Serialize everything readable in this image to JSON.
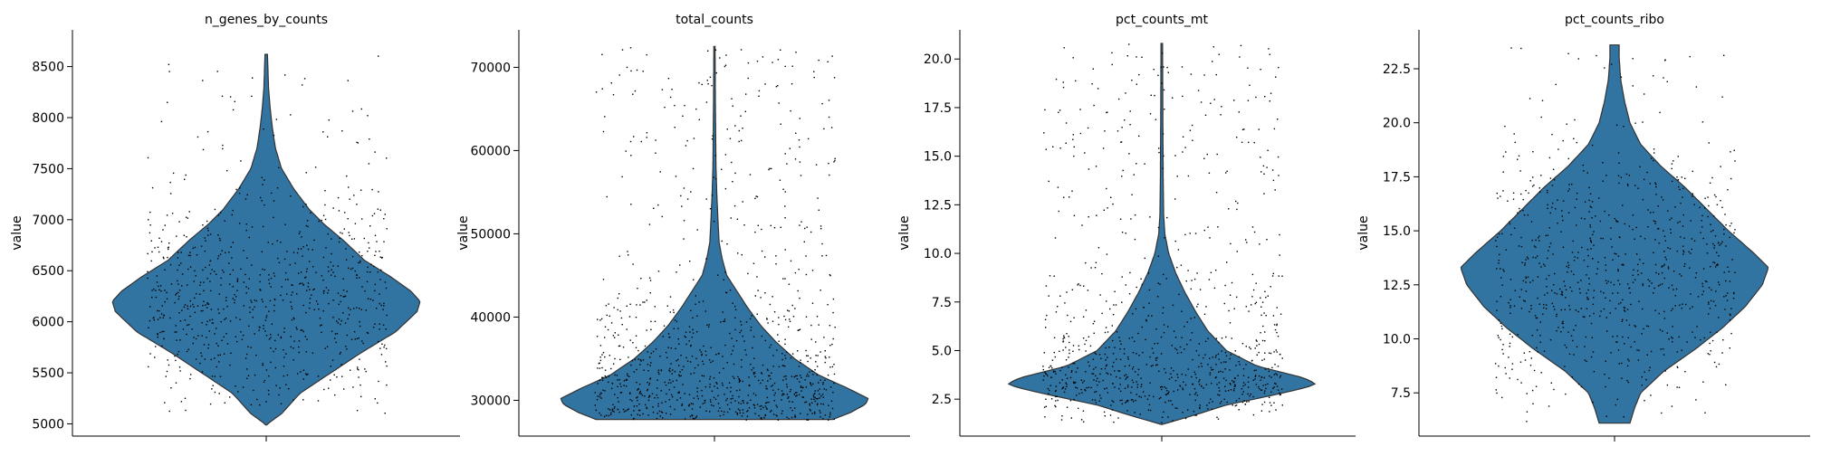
{
  "chart_data": [
    {
      "type": "violin",
      "title": "n_genes_by_counts",
      "ylabel": "value",
      "xlabel": "",
      "ylim": [
        4880,
        8860
      ],
      "yticks": [
        5000,
        5500,
        6000,
        6500,
        7000,
        7500,
        8000,
        8500
      ],
      "ytick_labels": [
        "5000",
        "5500",
        "6000",
        "6500",
        "7000",
        "7500",
        "8000",
        "8500"
      ],
      "data_range": [
        4990,
        8620
      ],
      "profile": [
        [
          4990,
          0.0
        ],
        [
          5100,
          0.1
        ],
        [
          5300,
          0.22
        ],
        [
          5500,
          0.42
        ],
        [
          5700,
          0.62
        ],
        [
          5900,
          0.84
        ],
        [
          6100,
          0.98
        ],
        [
          6200,
          1.0
        ],
        [
          6300,
          0.94
        ],
        [
          6450,
          0.8
        ],
        [
          6600,
          0.64
        ],
        [
          6800,
          0.5
        ],
        [
          6950,
          0.38
        ],
        [
          7100,
          0.28
        ],
        [
          7300,
          0.18
        ],
        [
          7500,
          0.1
        ],
        [
          7700,
          0.06
        ],
        [
          7900,
          0.04
        ],
        [
          8100,
          0.025
        ],
        [
          8300,
          0.015
        ],
        [
          8620,
          0.008
        ]
      ],
      "points": 800,
      "color": "#3274a1"
    },
    {
      "type": "violin",
      "title": "total_counts",
      "ylabel": "value",
      "xlabel": "",
      "ylim": [
        25700,
        74500
      ],
      "yticks": [
        30000,
        40000,
        50000,
        60000,
        70000
      ],
      "ytick_labels": [
        "30000",
        "40000",
        "50000",
        "60000",
        "70000"
      ],
      "data_range": [
        27700,
        72500
      ],
      "profile": [
        [
          27700,
          0.77
        ],
        [
          28500,
          0.88
        ],
        [
          29500,
          0.98
        ],
        [
          30200,
          1.0
        ],
        [
          31500,
          0.86
        ],
        [
          33000,
          0.68
        ],
        [
          35000,
          0.52
        ],
        [
          37000,
          0.4
        ],
        [
          39000,
          0.3
        ],
        [
          41000,
          0.22
        ],
        [
          43000,
          0.15
        ],
        [
          45000,
          0.08
        ],
        [
          47000,
          0.05
        ],
        [
          49000,
          0.03
        ],
        [
          52000,
          0.022
        ],
        [
          55000,
          0.015
        ],
        [
          58000,
          0.01
        ],
        [
          62000,
          0.008
        ],
        [
          66000,
          0.006
        ],
        [
          72500,
          0.004
        ]
      ],
      "points": 1000,
      "color": "#3274a1"
    },
    {
      "type": "violin",
      "title": "pct_counts_mt",
      "ylabel": "value",
      "xlabel": "",
      "ylim": [
        0.6,
        21.5
      ],
      "yticks": [
        2.5,
        5.0,
        7.5,
        10.0,
        12.5,
        15.0,
        17.5,
        20.0
      ],
      "ytick_labels": [
        "2.5",
        "5.0",
        "7.5",
        "10.0",
        "12.5",
        "15.0",
        "17.5",
        "20.0"
      ],
      "data_range": [
        1.2,
        20.8
      ],
      "profile": [
        [
          1.2,
          0.0
        ],
        [
          1.6,
          0.18
        ],
        [
          2.2,
          0.42
        ],
        [
          2.7,
          0.72
        ],
        [
          3.1,
          0.94
        ],
        [
          3.3,
          1.0
        ],
        [
          3.6,
          0.92
        ],
        [
          4.2,
          0.62
        ],
        [
          5.0,
          0.42
        ],
        [
          6.0,
          0.3
        ],
        [
          7.0,
          0.22
        ],
        [
          8.0,
          0.15
        ],
        [
          9.0,
          0.09
        ],
        [
          10.0,
          0.045
        ],
        [
          11.0,
          0.02
        ],
        [
          12.0,
          0.012
        ],
        [
          14.0,
          0.009
        ],
        [
          17.0,
          0.007
        ],
        [
          20.8,
          0.005
        ]
      ],
      "points": 900,
      "color": "#3274a1"
    },
    {
      "type": "violin",
      "title": "pct_counts_ribo",
      "ylabel": "value",
      "xlabel": "",
      "ylim": [
        5.5,
        24.3
      ],
      "yticks": [
        7.5,
        10.0,
        12.5,
        15.0,
        17.5,
        20.0,
        22.5
      ],
      "ytick_labels": [
        "7.5",
        "10.0",
        "12.5",
        "15.0",
        "17.5",
        "20.0",
        "22.5"
      ],
      "data_range": [
        6.1,
        23.6
      ],
      "profile": [
        [
          6.1,
          0.1
        ],
        [
          6.8,
          0.13
        ],
        [
          7.5,
          0.17
        ],
        [
          8.5,
          0.32
        ],
        [
          9.5,
          0.52
        ],
        [
          10.5,
          0.7
        ],
        [
          11.5,
          0.85
        ],
        [
          12.5,
          0.96
        ],
        [
          13.3,
          1.0
        ],
        [
          14.0,
          0.9
        ],
        [
          15.0,
          0.74
        ],
        [
          16.0,
          0.6
        ],
        [
          17.0,
          0.46
        ],
        [
          18.0,
          0.3
        ],
        [
          19.0,
          0.17
        ],
        [
          20.0,
          0.1
        ],
        [
          21.0,
          0.065
        ],
        [
          22.0,
          0.04
        ],
        [
          23.0,
          0.03
        ],
        [
          23.6,
          0.03
        ]
      ],
      "points": 800,
      "color": "#3274a1"
    }
  ]
}
